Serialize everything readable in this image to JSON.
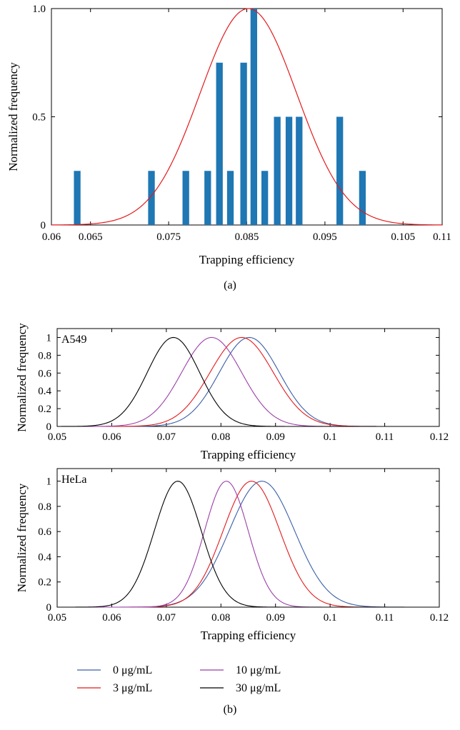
{
  "figure": {
    "caption_a": "(a)",
    "caption_b": "(b)"
  },
  "chart_data": [
    {
      "id": "a",
      "type": "bar",
      "xlabel": "Trapping efficiency",
      "ylabel": "Normalized frequency",
      "xlim": [
        0.06,
        0.11
      ],
      "ylim": [
        0,
        1.0
      ],
      "xticks": [
        0.06,
        0.065,
        0.075,
        0.085,
        0.095,
        0.105,
        0.11
      ],
      "xtick_labels": [
        "0.06",
        "0.065",
        "0.075",
        "0.085",
        "0.095",
        "0.105",
        "0.11"
      ],
      "yticks": [
        0,
        0.5,
        1.0
      ],
      "ytick_labels": [
        "0",
        "0.5",
        "1.0"
      ],
      "bar_color": "#1f77b4",
      "bar_width": 0.00085,
      "bars": {
        "x": [
          0.0633,
          0.0728,
          0.0772,
          0.08,
          0.0815,
          0.0829,
          0.0846,
          0.0859,
          0.0873,
          0.0889,
          0.0904,
          0.0917,
          0.0969,
          0.0998
        ],
        "y": [
          0.25,
          0.25,
          0.25,
          0.25,
          0.75,
          0.25,
          0.75,
          1.0,
          0.25,
          0.5,
          0.5,
          0.5,
          0.5,
          0.25
        ]
      },
      "fit_curve": {
        "type": "gaussian",
        "mean": 0.0852,
        "sigma": 0.0062,
        "peak": 1.0,
        "color": "#e31a1c"
      }
    },
    {
      "id": "b-a549",
      "type": "line",
      "label": "A549",
      "xlabel": "Trapping efficiency",
      "ylabel": "Normalized frequency",
      "xlim": [
        0.05,
        0.12
      ],
      "ylim": [
        0,
        1.1
      ],
      "xticks": [
        0.05,
        0.06,
        0.07,
        0.08,
        0.09,
        0.1,
        0.11,
        0.12
      ],
      "xtick_labels": [
        "0.05",
        "0.06",
        "0.07",
        "0.08",
        "0.09",
        "0.1",
        "0.11",
        "0.12"
      ],
      "yticks": [
        0,
        0.2,
        0.4,
        0.6,
        0.8,
        1
      ],
      "ytick_labels": [
        "0",
        "0.2",
        "0.4",
        "0.6",
        "0.8",
        "1"
      ],
      "series": [
        {
          "name": "0 μg/mL",
          "color": "#3a5fa8",
          "mean": 0.0852,
          "sigma": 0.0055
        },
        {
          "name": "3 μg/mL",
          "color": "#e31a1c",
          "mean": 0.0838,
          "sigma": 0.0058
        },
        {
          "name": "10 μg/mL",
          "color": "#9b3fa9",
          "mean": 0.0783,
          "sigma": 0.0055
        },
        {
          "name": "30 μg/mL",
          "color": "#000000",
          "mean": 0.0713,
          "sigma": 0.0048
        }
      ]
    },
    {
      "id": "b-hela",
      "type": "line",
      "label": "HeLa",
      "xlabel": "Trapping efficiency",
      "ylabel": "Normalized frequency",
      "xlim": [
        0.05,
        0.12
      ],
      "ylim": [
        0,
        1.1
      ],
      "xticks": [
        0.05,
        0.06,
        0.07,
        0.08,
        0.09,
        0.1,
        0.11,
        0.12
      ],
      "xtick_labels": [
        "0.05",
        "0.06",
        "0.07",
        "0.08",
        "0.09",
        "0.1",
        "0.11",
        "0.12"
      ],
      "yticks": [
        0,
        0.2,
        0.4,
        0.6,
        0.8,
        1
      ],
      "ytick_labels": [
        "0",
        "0.2",
        "0.4",
        "0.6",
        "0.8",
        "1"
      ],
      "series": [
        {
          "name": "0 μg/mL",
          "color": "#3a5fa8",
          "mean": 0.0875,
          "sigma": 0.006
        },
        {
          "name": "3 μg/mL",
          "color": "#e31a1c",
          "mean": 0.0856,
          "sigma": 0.0052
        },
        {
          "name": "10 μg/mL",
          "color": "#9b3fa9",
          "mean": 0.081,
          "sigma": 0.004
        },
        {
          "name": "30 μg/mL",
          "color": "#000000",
          "mean": 0.0721,
          "sigma": 0.0043
        }
      ]
    }
  ],
  "legend": {
    "items": [
      {
        "label": "0 μg/mL",
        "color": "#3a5fa8"
      },
      {
        "label": "3 μg/mL",
        "color": "#e31a1c"
      },
      {
        "label": "10 μg/mL",
        "color": "#9b3fa9"
      },
      {
        "label": "30 μg/mL",
        "color": "#000000"
      }
    ]
  }
}
